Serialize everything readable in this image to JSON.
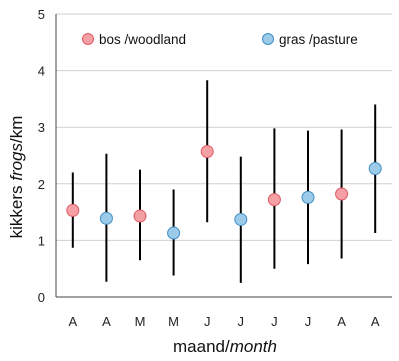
{
  "chart_data": {
    "type": "scatter",
    "xlabel_main": "maand/",
    "xlabel_italic": "month",
    "ylabel_main": "kikkers ",
    "ylabel_italic": "frogs",
    "ylabel_unit": "/km",
    "ylim": [
      0,
      5
    ],
    "yticks": [
      0,
      1,
      2,
      3,
      4,
      5
    ],
    "grid": true,
    "legend_position": "top",
    "categories": [
      "A",
      "A",
      "M",
      "M",
      "J",
      "J",
      "J",
      "J",
      "A",
      "A"
    ],
    "series": [
      {
        "name": "bos /woodland",
        "color": "#f4a0a5",
        "edge": "#e05a63",
        "points": [
          {
            "index": 0,
            "y": 1.53,
            "low": 0.87,
            "high": 2.2
          },
          {
            "index": 2,
            "y": 1.43,
            "low": 0.65,
            "high": 2.25
          },
          {
            "index": 4,
            "y": 2.57,
            "low": 1.32,
            "high": 3.83
          },
          {
            "index": 6,
            "y": 1.72,
            "low": 0.5,
            "high": 2.98
          },
          {
            "index": 8,
            "y": 1.82,
            "low": 0.68,
            "high": 2.96
          }
        ]
      },
      {
        "name": "gras /pasture",
        "color": "#9ccbea",
        "edge": "#3f8fc4",
        "points": [
          {
            "index": 1,
            "y": 1.39,
            "low": 0.27,
            "high": 2.53
          },
          {
            "index": 3,
            "y": 1.13,
            "low": 0.38,
            "high": 1.9
          },
          {
            "index": 5,
            "y": 1.37,
            "low": 0.25,
            "high": 2.48
          },
          {
            "index": 7,
            "y": 1.76,
            "low": 0.58,
            "high": 2.94
          },
          {
            "index": 9,
            "y": 2.27,
            "low": 1.13,
            "high": 3.4
          }
        ]
      }
    ]
  }
}
